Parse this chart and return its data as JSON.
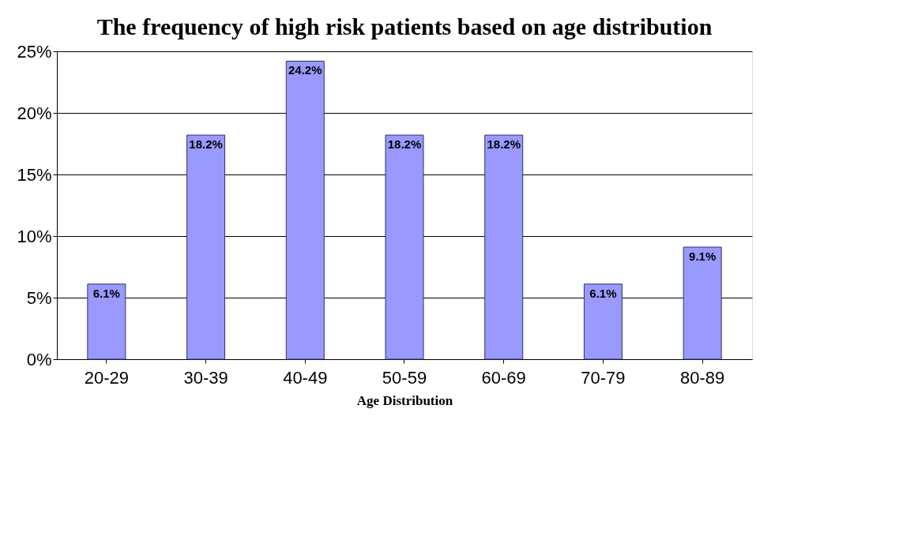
{
  "chart_data": {
    "type": "bar",
    "title": "The frequency of high risk patients based on age distribution",
    "xlabel": "Age Distribution",
    "categories": [
      "20-29",
      "30-39",
      "40-49",
      "50-59",
      "60-69",
      "70-79",
      "80-89"
    ],
    "values": [
      6.1,
      18.2,
      24.2,
      18.2,
      18.2,
      6.1,
      9.1
    ],
    "value_labels": [
      "6.1%",
      "18.2%",
      "24.2%",
      "18.2%",
      "18.2%",
      "6.1%",
      "9.1%"
    ],
    "color": "#9999ff",
    "ylim": [
      0,
      25
    ],
    "yticks": [
      {
        "value": 0,
        "label": "0%"
      },
      {
        "value": 5,
        "label": "5%"
      },
      {
        "value": 10,
        "label": "10%"
      },
      {
        "value": 15,
        "label": "15%"
      },
      {
        "value": 20,
        "label": "20%"
      },
      {
        "value": 25,
        "label": "25%"
      }
    ],
    "grid": "y"
  }
}
